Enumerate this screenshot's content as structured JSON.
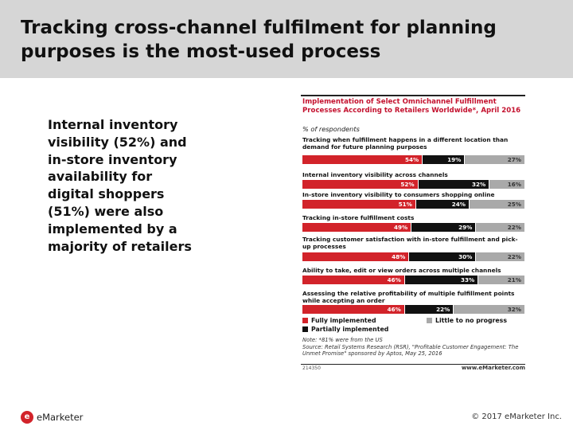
{
  "slide": {
    "title": "Tracking cross-channel fulfilment for planning purposes is the most-used process",
    "side_text": "Internal inventory visibility (52%) and in-store inventory availability for digital shoppers (51%) were also implemented by a majority of retailers"
  },
  "chart_data": {
    "type": "bar",
    "orientation": "horizontal-stacked-100",
    "title": "Implementation of Select Omnichannel Fulfillment Processes According to Retailers Worldwide*, April 2016",
    "subtitle": "% of respondents",
    "categories": [
      "Tracking when fulfillment happens in a different location than demand for future planning purposes",
      "Internal inventory visibility across channels",
      "In-store inventory visibility to consumers shopping online",
      "Tracking in-store fulfillment costs",
      "Tracking customer satisfaction with in-store fulfillment and pick-up processes",
      "Ability to take, edit or view orders across multiple channels",
      "Assessing the relative profitability of multiple fulfillment points while accepting an order"
    ],
    "series": [
      {
        "name": "Fully implemented",
        "color": "#d2232a",
        "values": [
          54,
          52,
          51,
          49,
          48,
          46,
          46
        ]
      },
      {
        "name": "Partially implemented",
        "color": "#111111",
        "values": [
          19,
          32,
          24,
          29,
          30,
          33,
          22
        ]
      },
      {
        "name": "Little to no progress",
        "color": "#a9a9a9",
        "values": [
          27,
          16,
          25,
          22,
          22,
          21,
          32
        ]
      }
    ],
    "value_suffix": "%",
    "xlim": [
      0,
      100
    ],
    "legend_position": "bottom",
    "note": "Note: *81% were from the US",
    "source": "Source: Retail Systems Research (RSR), \"Profitable Customer Engagement: The Unmet Promise\" sponsored by Aptos, May 25, 2016",
    "chart_id": "214350",
    "site": "www.eMarketer.com"
  },
  "footer": {
    "logo_mark": "e",
    "logo_text": "eMarketer",
    "copyright": "© 2017 eMarketer Inc."
  }
}
